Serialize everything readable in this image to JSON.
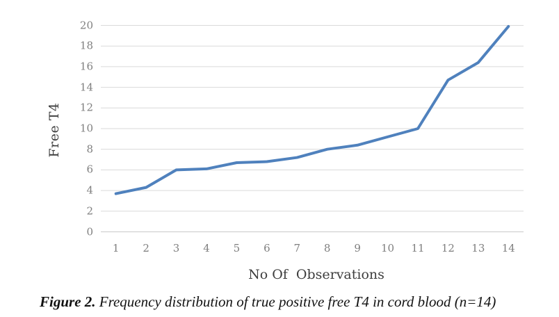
{
  "chart_data": {
    "type": "line",
    "title": "",
    "xlabel": "No Of  Observations",
    "ylabel": "Free T4",
    "categories": [
      "1",
      "2",
      "3",
      "4",
      "5",
      "6",
      "7",
      "8",
      "9",
      "10",
      "11",
      "12",
      "13",
      "14"
    ],
    "values": [
      3.7,
      4.3,
      6.0,
      6.1,
      6.7,
      6.8,
      7.2,
      8.0,
      8.4,
      9.2,
      10.0,
      14.7,
      16.4,
      19.9
    ],
    "ylim": [
      0,
      20
    ],
    "ytick_step": 2,
    "yticks": [
      0,
      2,
      4,
      6,
      8,
      10,
      12,
      14,
      16,
      18,
      20
    ],
    "grid": true,
    "legend": false,
    "line_color": "#4F81BD",
    "gridline_color": "#D9D9D9",
    "axis_line_color": "#C9C9C9",
    "tick_label_color": "#7F7F7F",
    "axis_title_color": "#3D3D3D"
  },
  "caption": {
    "prefix": "Figure 2.",
    "text": "Frequency distribution of true positive free T4 in cord blood (n=14)"
  }
}
